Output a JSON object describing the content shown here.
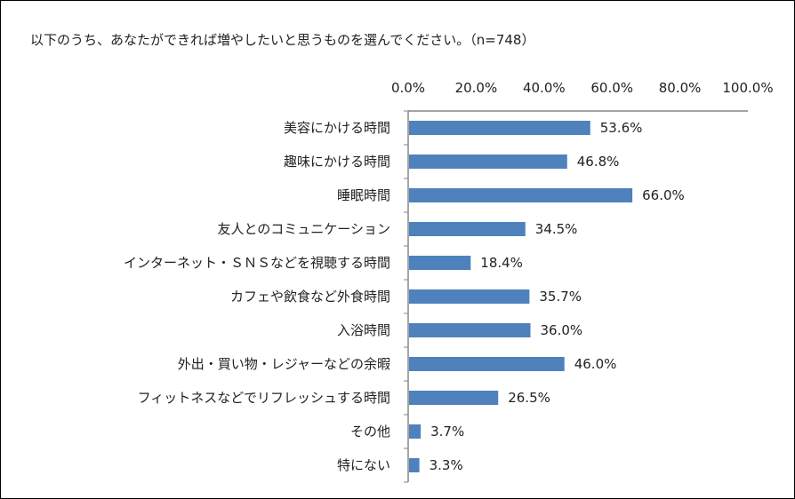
{
  "chart_data": {
    "type": "bar",
    "orientation": "horizontal",
    "title": "以下のうち、あなたができれば増やしたいと思うものを選んでください。（n=748）",
    "categories": [
      "美容にかける時間",
      "趣味にかける時間",
      "睡眠時間",
      "友人とのコミュニケーション",
      "インターネット・ＳＮＳなどを視聴する時間",
      "カフェや飲食など外食時間",
      "入浴時間",
      "外出・買い物・レジャーなどの余暇",
      "フィットネスなどでリフレッシュする時間",
      "その他",
      "特にない"
    ],
    "values": [
      53.6,
      46.8,
      66.0,
      34.5,
      18.4,
      35.7,
      36.0,
      46.0,
      26.5,
      3.7,
      3.3
    ],
    "value_labels": [
      "53.6%",
      "46.8%",
      "66.0%",
      "34.5%",
      "18.4%",
      "35.7%",
      "36.0%",
      "46.0%",
      "26.5%",
      "3.7%",
      "3.3%"
    ],
    "xlim": [
      0,
      100
    ],
    "x_ticks": [
      0,
      20,
      40,
      60,
      80,
      100
    ],
    "x_tick_labels": [
      "0.0%",
      "20.0%",
      "40.0%",
      "60.0%",
      "80.0%",
      "100.0%"
    ],
    "x_axis_position": "top",
    "bar_color": "#4f81bd",
    "grid": false,
    "legend": "none"
  }
}
